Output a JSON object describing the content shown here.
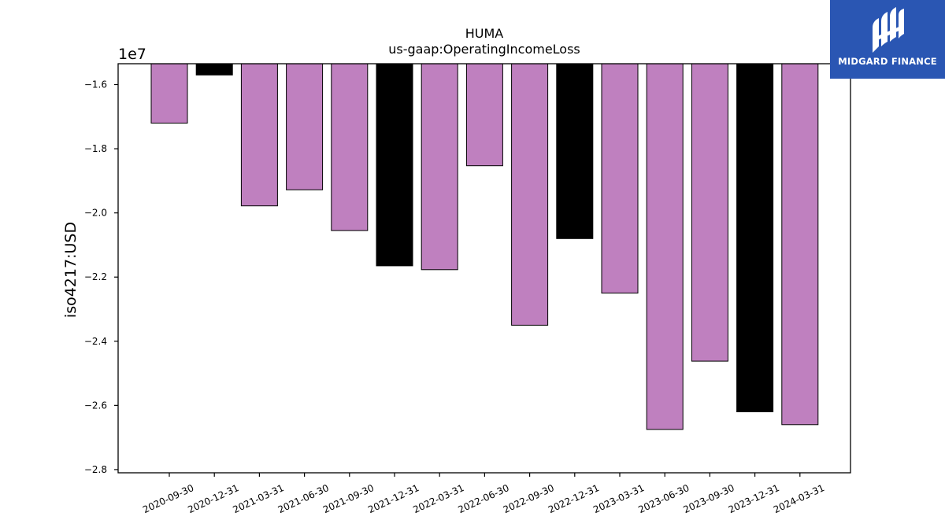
{
  "chart_data": {
    "type": "bar",
    "title": "HUMA",
    "subtitle": "us-gaap:OperatingIncomeLoss",
    "ylabel": "iso4217:USD",
    "xlabel": "",
    "offset_label": "1e7",
    "y_scale": 10000000,
    "ylim": [
      -28100000,
      -15350000
    ],
    "yticks": [
      -1.6,
      -1.8,
      -2.0,
      -2.2,
      -2.4,
      -2.6,
      -2.8
    ],
    "categories": [
      "2020-09-30",
      "2020-12-31",
      "2021-03-31",
      "2021-06-30",
      "2021-09-30",
      "2021-12-31",
      "2022-03-31",
      "2022-06-30",
      "2022-09-30",
      "2022-12-31",
      "2023-03-31",
      "2023-06-30",
      "2023-09-30",
      "2023-12-31",
      "2024-03-31"
    ],
    "values": [
      -17200000,
      -15700000,
      -19780000,
      -19280000,
      -20550000,
      -21650000,
      -21770000,
      -18530000,
      -23500000,
      -20800000,
      -22500000,
      -26750000,
      -24620000,
      -26200000,
      -26600000
    ],
    "bar_colors": [
      "#bf80bf",
      "#000000",
      "#bf80bf",
      "#bf80bf",
      "#bf80bf",
      "#000000",
      "#bf80bf",
      "#bf80bf",
      "#bf80bf",
      "#000000",
      "#bf80bf",
      "#bf80bf",
      "#bf80bf",
      "#000000",
      "#bf80bf"
    ],
    "grid": false,
    "legend": "none"
  },
  "logo": {
    "text": "MIDGARD FINANCE",
    "background": "#2a56b3"
  }
}
